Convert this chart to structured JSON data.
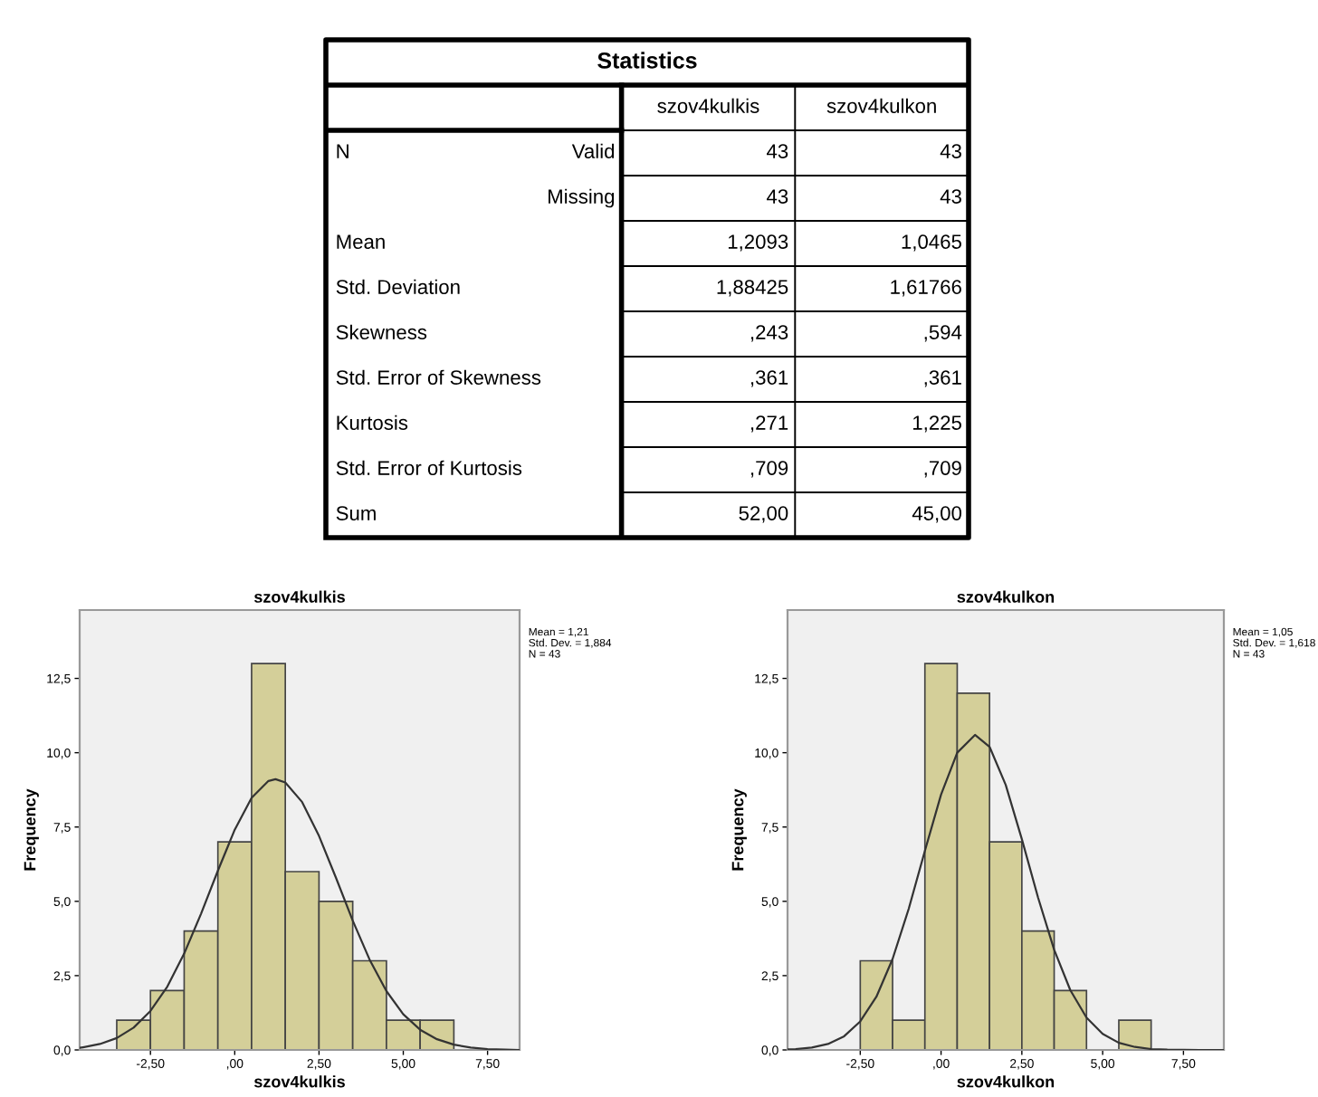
{
  "chart_data": [
    {
      "type": "other",
      "title": "Statistics",
      "annotations": [
        "szov4kulkis",
        "szov4kulkon",
        "N",
        "Valid",
        "43",
        "43",
        "Missing",
        "43",
        "43",
        "Mean",
        "1,2093",
        "1,0465",
        "Std. Deviation",
        "1,88425",
        "1,61766",
        "Skewness",
        ",243",
        ",594",
        "Std. Error of Skewness",
        ",361",
        ",361",
        "Kurtosis",
        ",271",
        "1,225",
        "Std. Error of Kurtosis",
        ",709",
        ",709",
        "Sum",
        "52,00",
        "45,00"
      ]
    },
    {
      "type": "histogram",
      "title": "szov4kulkis",
      "xlabel": "szov4kulkis",
      "ylabel": "Frequency",
      "bins": [
        -3.5,
        -2.5,
        -1.5,
        -0.5,
        0.5,
        1.5,
        2.5,
        3.5,
        4.5,
        5.5,
        6.5
      ],
      "values": [
        1,
        2,
        4,
        7,
        13,
        6,
        5,
        3,
        1,
        1
      ],
      "color": "#d4cf99",
      "series": [
        {
          "type": "line",
          "color": "#333333",
          "x": [
            -4.6,
            -4.5,
            -4,
            -3.5,
            -3,
            -2.5,
            -2,
            -1.5,
            -1,
            -0.5,
            0,
            0.5,
            1,
            1.21,
            1.5,
            2,
            2.5,
            3,
            3.5,
            4,
            4.5,
            5,
            5.5,
            6,
            6.5,
            7,
            7.5,
            8,
            8.45
          ],
          "values": [
            0.07,
            0.09,
            0.2,
            0.4,
            0.75,
            1.31,
            2.13,
            3.24,
            4.58,
            6.03,
            7.41,
            8.48,
            9.05,
            9.11,
            9.0,
            8.34,
            7.2,
            5.8,
            4.35,
            3.04,
            1.98,
            1.2,
            0.68,
            0.36,
            0.18,
            0.08,
            0.03,
            0.01,
            0.0
          ]
        }
      ],
      "xlim": [
        -4.6,
        8.45
      ],
      "ylim": [
        0,
        14.8
      ],
      "xticks": [
        {
          "value": -2.5,
          "label": "-2,50"
        },
        {
          "value": 0,
          "label": ",00"
        },
        {
          "value": 2.5,
          "label": "2,50"
        },
        {
          "value": 5,
          "label": "5,00"
        },
        {
          "value": 7.5,
          "label": "7,50"
        }
      ],
      "yticks": [
        {
          "value": 0,
          "label": "0,0"
        },
        {
          "value": 2.5,
          "label": "2,5"
        },
        {
          "value": 5,
          "label": "5,0"
        },
        {
          "value": 7.5,
          "label": "7,5"
        },
        {
          "value": 10,
          "label": "10,0"
        },
        {
          "value": 12.5,
          "label": "12,5"
        }
      ],
      "annotations": [
        "Mean = 1,21",
        "Std. Dev. = 1,884",
        "N = 43"
      ]
    },
    {
      "type": "histogram",
      "title": "szov4kulkon",
      "xlabel": "szov4kulkon",
      "ylabel": "Frequency",
      "bins": [
        -2.5,
        -1.5,
        -0.5,
        0.5,
        1.5,
        2.5,
        3.5,
        4.5,
        5.5,
        6.5
      ],
      "values": [
        3,
        1,
        13,
        12,
        7,
        4,
        2,
        0,
        1
      ],
      "color": "#d4cf99",
      "series": [
        {
          "type": "line",
          "color": "#333333",
          "x": [
            -4.75,
            -4.5,
            -4,
            -3.5,
            -3,
            -2.5,
            -2,
            -1.5,
            -1,
            -0.5,
            0,
            0.5,
            1.05,
            1.5,
            2,
            2.5,
            3,
            3.5,
            4,
            4.5,
            5,
            5.5,
            6,
            6.5,
            7,
            8,
            8.75
          ],
          "values": [
            0.02,
            0.03,
            0.08,
            0.2,
            0.46,
            0.96,
            1.79,
            3.06,
            4.75,
            6.7,
            8.59,
            10.0,
            10.6,
            10.2,
            8.92,
            7.09,
            5.13,
            3.37,
            2.01,
            1.09,
            0.54,
            0.24,
            0.1,
            0.03,
            0.01,
            0.0,
            0.0
          ]
        }
      ],
      "xlim": [
        -4.75,
        8.75
      ],
      "ylim": [
        0,
        14.8
      ],
      "xticks": [
        {
          "value": -2.5,
          "label": "-2,50"
        },
        {
          "value": 0,
          "label": ",00"
        },
        {
          "value": 2.5,
          "label": "2,50"
        },
        {
          "value": 5,
          "label": "5,00"
        },
        {
          "value": 7.5,
          "label": "7,50"
        }
      ],
      "yticks": [
        {
          "value": 0,
          "label": "0,0"
        },
        {
          "value": 2.5,
          "label": "2,5"
        },
        {
          "value": 5,
          "label": "5,0"
        },
        {
          "value": 7.5,
          "label": "7,5"
        },
        {
          "value": 10,
          "label": "10,0"
        },
        {
          "value": 12.5,
          "label": "12,5"
        }
      ],
      "annotations": [
        "Mean = 1,05",
        "Std. Dev. = 1,618",
        "N = 43"
      ]
    }
  ]
}
